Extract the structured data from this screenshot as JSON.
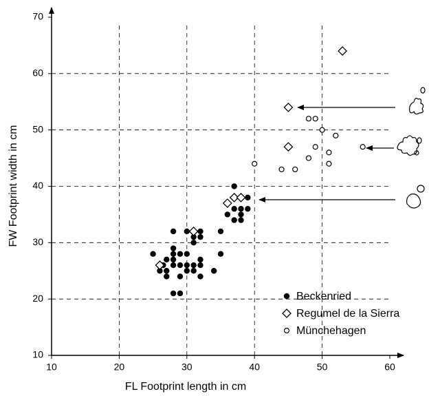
{
  "chart_data": {
    "type": "scatter",
    "x_label": "FL Footprint length in cm",
    "y_label": "FW Footprint width in cm",
    "xlim": [
      10,
      60
    ],
    "xticks": [
      10,
      20,
      30,
      40,
      50,
      60
    ],
    "ylim": [
      10,
      70
    ],
    "yticks": [
      10,
      20,
      30,
      40,
      50,
      60,
      70
    ],
    "grid": true,
    "grid_style": "dashed",
    "legend_position": "lower right",
    "series": [
      {
        "name": "Beckenried",
        "color": "#000000",
        "marker": "circle-filled",
        "x": [
          25,
          26,
          26.5,
          27,
          27,
          27,
          28,
          28,
          28,
          28,
          28,
          28,
          29,
          29,
          29,
          29,
          30,
          30,
          30,
          30,
          31,
          31,
          31,
          31,
          32,
          32,
          32,
          32,
          32,
          34,
          35,
          35,
          36,
          37,
          37,
          37,
          38,
          38,
          38,
          39,
          39
        ],
        "values": [
          28,
          25,
          26,
          27,
          25,
          24,
          32,
          29,
          28,
          27,
          26,
          21,
          28,
          26,
          24,
          21,
          32,
          28,
          26,
          25,
          31,
          30,
          26,
          25,
          32,
          31,
          27,
          26,
          24,
          25,
          32,
          28,
          35,
          40,
          36,
          34,
          36,
          35,
          34,
          38,
          36
        ]
      },
      {
        "name": "Regumel de la Sierra",
        "color": "#000000",
        "marker": "diamond",
        "x": [
          26,
          31,
          36,
          37,
          38,
          45,
          45,
          53
        ],
        "values": [
          26,
          32,
          37,
          38,
          38,
          47,
          54,
          64
        ]
      },
      {
        "name": "Münchehagen",
        "color": "#000000",
        "marker": "circle-open",
        "x": [
          40,
          44,
          46,
          48,
          49,
          48,
          49,
          50,
          51,
          51,
          52,
          56
        ],
        "values": [
          44,
          43,
          43,
          45,
          47,
          52,
          52,
          50,
          44,
          46,
          49,
          47
        ]
      }
    ]
  }
}
